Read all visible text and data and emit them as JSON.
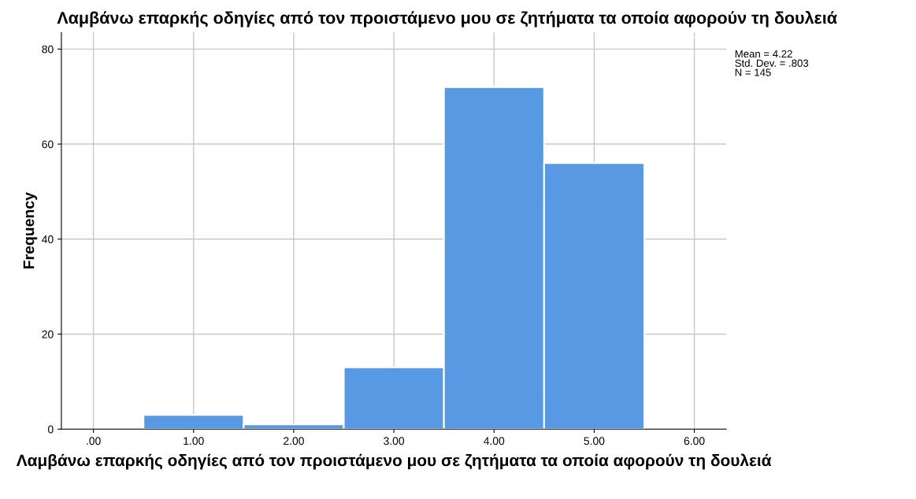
{
  "chart_data": {
    "type": "histogram",
    "title": "Λαμβάνω επαρκής οδηγίες από τον προιστάμενο μου σε ζητήματα τα οποία αφορούν τη δουλειά",
    "xlabel": "Λαμβάνω επαρκής οδηγίες από τον προιστάμενο μου σε ζητήματα τα οποία αφορούν τη δουλειά",
    "ylabel": "Frequency",
    "bins": [
      0.5,
      1.5,
      2.5,
      3.5,
      4.5,
      5.5
    ],
    "values": [
      3,
      1,
      13,
      72,
      56
    ],
    "color": "#5799e3",
    "xlim": [
      -0.32,
      6.32
    ],
    "ylim": [
      0,
      83.5
    ],
    "xticks": [
      {
        "value": 0,
        "label": ".00"
      },
      {
        "value": 1,
        "label": "1.00"
      },
      {
        "value": 2,
        "label": "2.00"
      },
      {
        "value": 3,
        "label": "3.00"
      },
      {
        "value": 4,
        "label": "4.00"
      },
      {
        "value": 5,
        "label": "5.00"
      },
      {
        "value": 6,
        "label": "6.00"
      }
    ],
    "yticks": [
      0,
      20,
      40,
      60,
      80
    ],
    "grid": true,
    "annotations": [
      "Mean = 4.22",
      "Std. Dev. = .803",
      "N = 145"
    ]
  }
}
